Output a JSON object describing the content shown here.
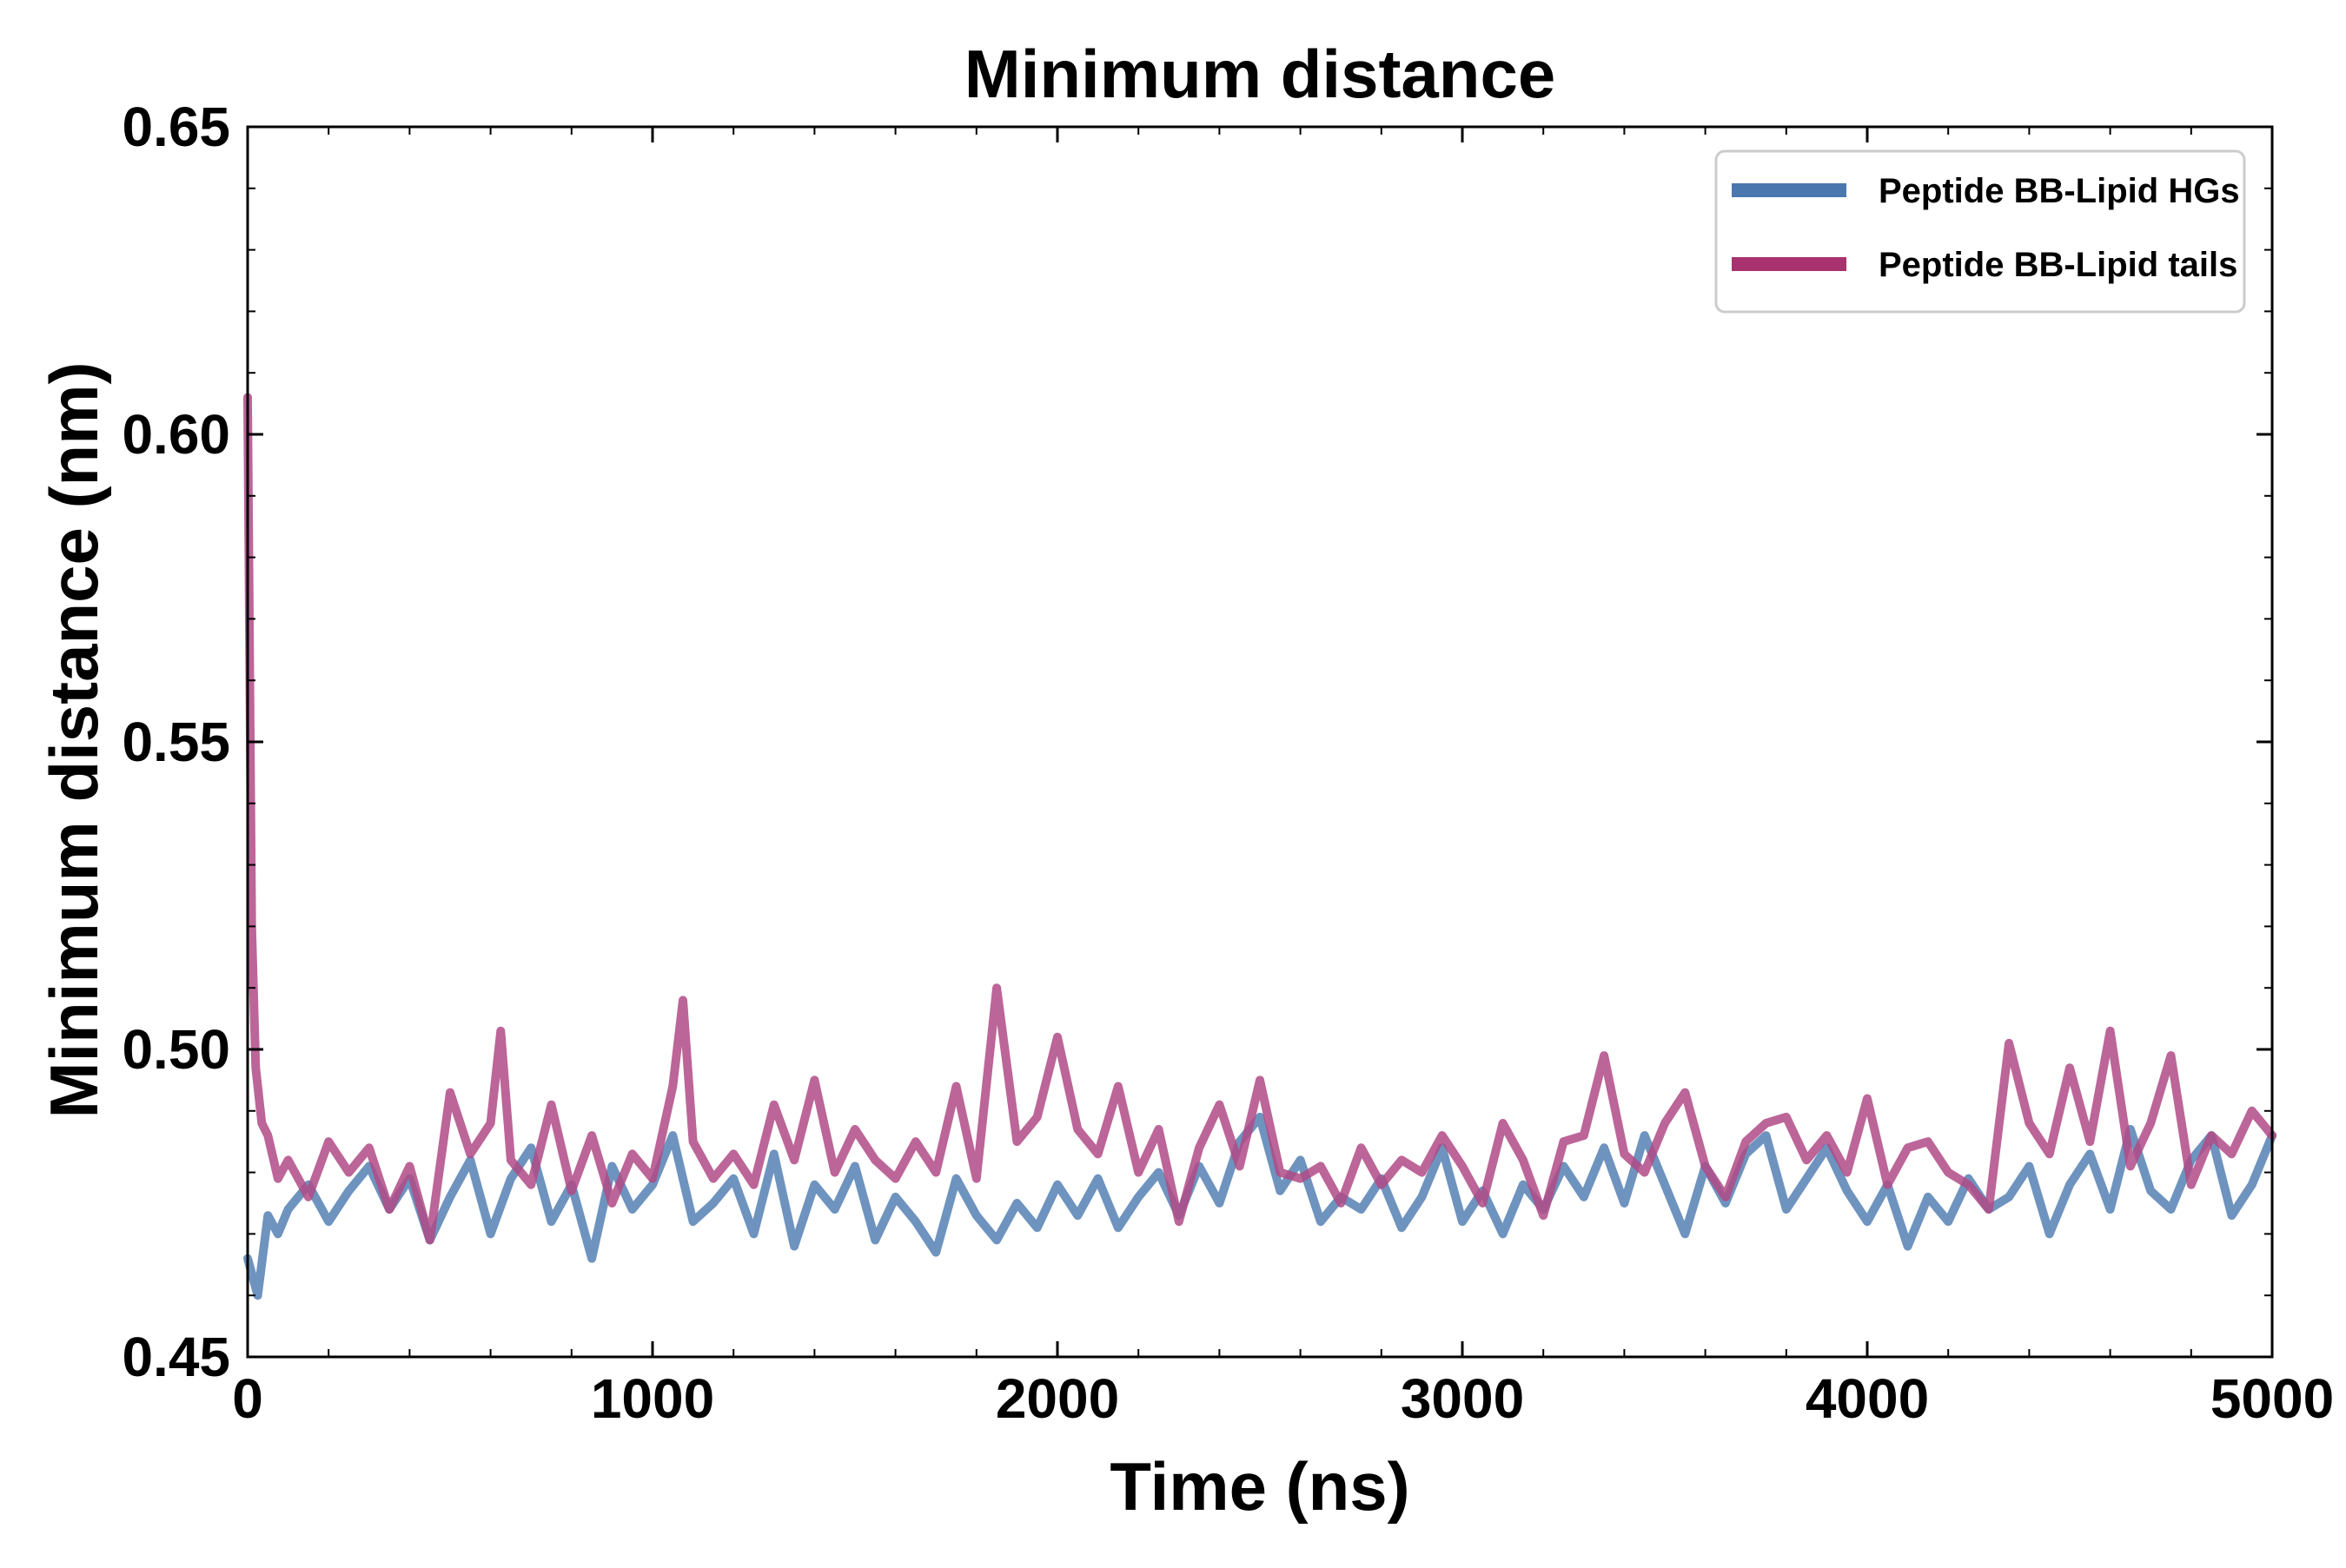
{
  "chart_data": {
    "type": "line",
    "title": "Minimum distance",
    "xlabel": "Time (ns)",
    "ylabel": "Minimum distance (nm)",
    "xlim": [
      0,
      5000
    ],
    "ylim": [
      0.45,
      0.65
    ],
    "x_ticks": [
      0,
      1000,
      2000,
      3000,
      4000,
      5000
    ],
    "x_tick_labels": [
      "0",
      "1000",
      "2000",
      "3000",
      "4000",
      "5000"
    ],
    "y_ticks": [
      0.45,
      0.5,
      0.55,
      0.6,
      0.65
    ],
    "y_tick_labels": [
      "0.45",
      "0.50",
      "0.55",
      "0.60",
      "0.65"
    ],
    "x_minor_step": 200,
    "y_minor_step": 0.01,
    "grid": false,
    "legend_position": "top-right",
    "series": [
      {
        "name": "Peptide BB-Lipid HGs",
        "legend_label": "Peptide BB-Lipid HGs",
        "line_color": "#4a78ae",
        "legend_color": "#4a78ae",
        "opacity": 0.8,
        "x": [
          0,
          25,
          50,
          75,
          100,
          150,
          200,
          250,
          300,
          350,
          400,
          450,
          500,
          550,
          600,
          650,
          700,
          750,
          800,
          850,
          900,
          950,
          1000,
          1050,
          1100,
          1150,
          1200,
          1250,
          1300,
          1350,
          1400,
          1450,
          1500,
          1550,
          1600,
          1650,
          1700,
          1750,
          1800,
          1850,
          1900,
          1950,
          2000,
          2050,
          2100,
          2150,
          2200,
          2250,
          2300,
          2350,
          2400,
          2450,
          2500,
          2550,
          2600,
          2650,
          2700,
          2750,
          2800,
          2850,
          2900,
          2950,
          3000,
          3050,
          3100,
          3150,
          3200,
          3250,
          3300,
          3350,
          3400,
          3450,
          3500,
          3550,
          3600,
          3650,
          3700,
          3750,
          3800,
          3850,
          3900,
          3950,
          4000,
          4050,
          4100,
          4150,
          4200,
          4250,
          4300,
          4350,
          4400,
          4450,
          4500,
          4550,
          4600,
          4650,
          4700,
          4750,
          4800,
          4850,
          4900,
          4950,
          5000
        ],
        "values": [
          0.466,
          0.46,
          0.473,
          0.47,
          0.474,
          0.478,
          0.472,
          0.477,
          0.481,
          0.474,
          0.479,
          0.469,
          0.476,
          0.482,
          0.47,
          0.479,
          0.484,
          0.472,
          0.478,
          0.466,
          0.481,
          0.474,
          0.478,
          0.486,
          0.472,
          0.475,
          0.479,
          0.47,
          0.483,
          0.468,
          0.478,
          0.474,
          0.481,
          0.469,
          0.476,
          0.472,
          0.467,
          0.479,
          0.473,
          0.469,
          0.475,
          0.471,
          0.478,
          0.473,
          0.479,
          0.471,
          0.476,
          0.48,
          0.473,
          0.481,
          0.475,
          0.485,
          0.489,
          0.477,
          0.482,
          0.472,
          0.476,
          0.474,
          0.479,
          0.471,
          0.476,
          0.484,
          0.472,
          0.477,
          0.47,
          0.478,
          0.474,
          0.481,
          0.476,
          0.484,
          0.475,
          0.486,
          0.478,
          0.47,
          0.481,
          0.475,
          0.483,
          0.486,
          0.474,
          0.479,
          0.484,
          0.477,
          0.472,
          0.478,
          0.468,
          0.476,
          0.472,
          0.479,
          0.474,
          0.476,
          0.481,
          0.47,
          0.478,
          0.483,
          0.474,
          0.487,
          0.477,
          0.474,
          0.482,
          0.486,
          0.473,
          0.478,
          0.486
        ]
      },
      {
        "name": "Peptide BB-Lipid tails",
        "legend_label": "Peptide BB-Lipid tails",
        "line_color": "#b04a86",
        "legend_color": "#a8326e",
        "opacity": 0.85,
        "x": [
          0,
          10,
          20,
          35,
          50,
          75,
          100,
          150,
          200,
          250,
          300,
          350,
          400,
          450,
          500,
          550,
          600,
          625,
          650,
          700,
          750,
          800,
          850,
          900,
          950,
          1000,
          1050,
          1075,
          1100,
          1150,
          1200,
          1250,
          1300,
          1350,
          1400,
          1450,
          1500,
          1550,
          1600,
          1650,
          1700,
          1750,
          1800,
          1850,
          1900,
          1950,
          2000,
          2050,
          2100,
          2150,
          2200,
          2250,
          2300,
          2350,
          2400,
          2450,
          2500,
          2550,
          2600,
          2650,
          2700,
          2750,
          2800,
          2850,
          2900,
          2950,
          3000,
          3050,
          3100,
          3150,
          3200,
          3250,
          3300,
          3350,
          3400,
          3450,
          3500,
          3550,
          3600,
          3650,
          3700,
          3750,
          3800,
          3850,
          3900,
          3950,
          4000,
          4050,
          4100,
          4150,
          4200,
          4250,
          4300,
          4350,
          4400,
          4450,
          4500,
          4550,
          4600,
          4650,
          4700,
          4750,
          4800,
          4850,
          4900,
          4950,
          5000
        ],
        "values": [
          0.606,
          0.52,
          0.497,
          0.488,
          0.486,
          0.479,
          0.482,
          0.476,
          0.485,
          0.48,
          0.484,
          0.474,
          0.481,
          0.469,
          0.493,
          0.483,
          0.488,
          0.503,
          0.482,
          0.478,
          0.491,
          0.477,
          0.486,
          0.475,
          0.483,
          0.479,
          0.494,
          0.508,
          0.485,
          0.479,
          0.483,
          0.478,
          0.491,
          0.482,
          0.495,
          0.48,
          0.487,
          0.482,
          0.479,
          0.485,
          0.48,
          0.494,
          0.479,
          0.51,
          0.485,
          0.489,
          0.502,
          0.487,
          0.483,
          0.494,
          0.48,
          0.487,
          0.472,
          0.484,
          0.491,
          0.481,
          0.495,
          0.48,
          0.479,
          0.481,
          0.475,
          0.484,
          0.478,
          0.482,
          0.48,
          0.486,
          0.481,
          0.475,
          0.488,
          0.482,
          0.473,
          0.485,
          0.486,
          0.499,
          0.483,
          0.48,
          0.488,
          0.493,
          0.481,
          0.476,
          0.485,
          0.488,
          0.489,
          0.482,
          0.486,
          0.48,
          0.492,
          0.478,
          0.484,
          0.485,
          0.48,
          0.478,
          0.474,
          0.501,
          0.488,
          0.483,
          0.497,
          0.485,
          0.503,
          0.481,
          0.488,
          0.499,
          0.478,
          0.486,
          0.483,
          0.49,
          0.486
        ]
      }
    ]
  }
}
